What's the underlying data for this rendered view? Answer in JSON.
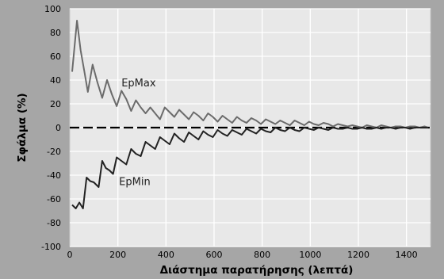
{
  "chart_data": {
    "type": "line",
    "title": "",
    "xlabel": "Διάστημα παρατήρησης (λεπτά)",
    "ylabel": "Σφάλμα (%)",
    "xlim": [
      0,
      1500
    ],
    "ylim": [
      -100,
      100
    ],
    "xticks": [
      0,
      200,
      400,
      600,
      800,
      1000,
      1200,
      1400
    ],
    "yticks": [
      -100,
      -80,
      -60,
      -40,
      -20,
      0,
      20,
      40,
      60,
      80,
      100
    ],
    "grid": true,
    "colors": {
      "background": "#a6a6a6",
      "plot_area": "#e8e8e8",
      "grid": "#ffffff",
      "epmax": "#6b6b6b",
      "epmin": "#222222",
      "zero": "#000000"
    },
    "series": [
      {
        "name": "EpMax",
        "label_position": [
          215,
          38
        ],
        "points": [
          [
            10,
            47
          ],
          [
            30,
            90
          ],
          [
            45,
            65
          ],
          [
            60,
            48
          ],
          [
            75,
            30
          ],
          [
            95,
            53
          ],
          [
            115,
            38
          ],
          [
            135,
            25
          ],
          [
            155,
            40
          ],
          [
            175,
            28
          ],
          [
            195,
            18
          ],
          [
            215,
            31
          ],
          [
            235,
            24
          ],
          [
            255,
            14
          ],
          [
            275,
            23
          ],
          [
            295,
            17
          ],
          [
            315,
            12
          ],
          [
            335,
            17
          ],
          [
            355,
            12
          ],
          [
            375,
            7
          ],
          [
            395,
            17
          ],
          [
            415,
            13
          ],
          [
            435,
            9
          ],
          [
            455,
            15
          ],
          [
            475,
            11
          ],
          [
            495,
            7
          ],
          [
            515,
            13
          ],
          [
            535,
            10
          ],
          [
            555,
            6
          ],
          [
            575,
            12
          ],
          [
            595,
            9
          ],
          [
            615,
            5
          ],
          [
            635,
            10
          ],
          [
            655,
            7
          ],
          [
            675,
            4
          ],
          [
            695,
            9
          ],
          [
            715,
            6
          ],
          [
            735,
            4
          ],
          [
            755,
            8
          ],
          [
            775,
            6
          ],
          [
            795,
            3
          ],
          [
            815,
            7
          ],
          [
            835,
            5
          ],
          [
            855,
            3
          ],
          [
            875,
            6
          ],
          [
            895,
            4
          ],
          [
            915,
            2
          ],
          [
            935,
            6
          ],
          [
            955,
            4
          ],
          [
            975,
            2
          ],
          [
            995,
            5
          ],
          [
            1015,
            3
          ],
          [
            1035,
            2
          ],
          [
            1055,
            4
          ],
          [
            1075,
            3
          ],
          [
            1095,
            1
          ],
          [
            1115,
            3
          ],
          [
            1135,
            2
          ],
          [
            1155,
            1
          ],
          [
            1175,
            2
          ],
          [
            1195,
            1
          ],
          [
            1215,
            0
          ],
          [
            1235,
            2
          ],
          [
            1255,
            1
          ],
          [
            1275,
            0
          ],
          [
            1295,
            2
          ],
          [
            1315,
            1
          ],
          [
            1335,
            0
          ],
          [
            1355,
            1
          ],
          [
            1375,
            1
          ],
          [
            1395,
            0
          ],
          [
            1415,
            1
          ],
          [
            1435,
            1
          ],
          [
            1455,
            0
          ],
          [
            1475,
            1
          ],
          [
            1490,
            0
          ]
        ]
      },
      {
        "name": "EpMin",
        "label_position": [
          205,
          -45
        ],
        "points": [
          [
            10,
            -65
          ],
          [
            25,
            -68
          ],
          [
            40,
            -63
          ],
          [
            55,
            -68
          ],
          [
            70,
            -42
          ],
          [
            85,
            -45
          ],
          [
            100,
            -46
          ],
          [
            120,
            -50
          ],
          [
            135,
            -28
          ],
          [
            150,
            -34
          ],
          [
            165,
            -36
          ],
          [
            180,
            -39
          ],
          [
            195,
            -25
          ],
          [
            215,
            -28
          ],
          [
            235,
            -31
          ],
          [
            255,
            -18
          ],
          [
            275,
            -22
          ],
          [
            295,
            -24
          ],
          [
            315,
            -12
          ],
          [
            335,
            -15
          ],
          [
            355,
            -18
          ],
          [
            375,
            -8
          ],
          [
            395,
            -11
          ],
          [
            415,
            -14
          ],
          [
            435,
            -5
          ],
          [
            455,
            -9
          ],
          [
            475,
            -12
          ],
          [
            495,
            -4
          ],
          [
            515,
            -7
          ],
          [
            535,
            -10
          ],
          [
            555,
            -3
          ],
          [
            575,
            -6
          ],
          [
            595,
            -8
          ],
          [
            615,
            -2
          ],
          [
            635,
            -5
          ],
          [
            655,
            -7
          ],
          [
            675,
            -2
          ],
          [
            695,
            -4
          ],
          [
            715,
            -6
          ],
          [
            735,
            -1
          ],
          [
            755,
            -3
          ],
          [
            775,
            -5
          ],
          [
            795,
            -1
          ],
          [
            815,
            -3
          ],
          [
            835,
            -4
          ],
          [
            855,
            0
          ],
          [
            875,
            -2
          ],
          [
            895,
            -3
          ],
          [
            915,
            0
          ],
          [
            935,
            -2
          ],
          [
            955,
            -3
          ],
          [
            975,
            0
          ],
          [
            995,
            -1
          ],
          [
            1015,
            -2
          ],
          [
            1035,
            0
          ],
          [
            1055,
            -1
          ],
          [
            1075,
            -2
          ],
          [
            1095,
            0
          ],
          [
            1115,
            -1
          ],
          [
            1135,
            -1
          ],
          [
            1155,
            0
          ],
          [
            1175,
            -1
          ],
          [
            1195,
            -1
          ],
          [
            1215,
            0
          ],
          [
            1235,
            -1
          ],
          [
            1255,
            -1
          ],
          [
            1275,
            0
          ],
          [
            1295,
            -1
          ],
          [
            1315,
            0
          ],
          [
            1335,
            0
          ],
          [
            1355,
            -1
          ],
          [
            1375,
            0
          ],
          [
            1395,
            0
          ],
          [
            1415,
            -1
          ],
          [
            1435,
            0
          ],
          [
            1455,
            0
          ],
          [
            1475,
            0
          ],
          [
            1490,
            0
          ]
        ]
      }
    ],
    "reference_line": {
      "y": 0,
      "style": "dashed"
    }
  }
}
